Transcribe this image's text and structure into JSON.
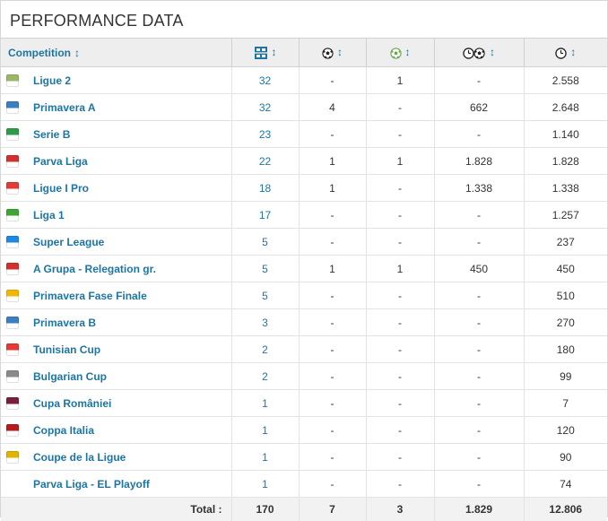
{
  "title": "PERFORMANCE DATA",
  "header": {
    "competition_label": "Competition",
    "columns": [
      {
        "icon": "appearances-icon",
        "sort": "↕"
      },
      {
        "icon": "goals-icon",
        "sort": "↕"
      },
      {
        "icon": "assists-icon",
        "sort": "↕"
      },
      {
        "icon": "minutes-per-goal-icon",
        "sort": "↕"
      },
      {
        "icon": "minutes-played-icon",
        "sort": "↕"
      }
    ],
    "sort_symbol": "↕"
  },
  "rows": [
    {
      "competition": "Ligue 2",
      "logo": "ligue-2-logo",
      "color": "#9bb86a",
      "apps": "32",
      "goals": "-",
      "assists": "1",
      "min_per_goal": "-",
      "minutes": "2.558"
    },
    {
      "competition": "Primavera A",
      "logo": "primavera-a-logo",
      "color": "#3a7fc4",
      "apps": "32",
      "goals": "4",
      "assists": "-",
      "min_per_goal": "662",
      "minutes": "2.648"
    },
    {
      "competition": "Serie B",
      "logo": "serie-b-logo",
      "color": "#2e9b4a",
      "apps": "23",
      "goals": "-",
      "assists": "-",
      "min_per_goal": "-",
      "minutes": "1.140"
    },
    {
      "competition": "Parva Liga",
      "logo": "parva-liga-logo",
      "color": "#d32f2f",
      "apps": "22",
      "goals": "1",
      "assists": "1",
      "min_per_goal": "1.828",
      "minutes": "1.828"
    },
    {
      "competition": "Ligue I Pro",
      "logo": "ligue-1-pro-logo",
      "color": "#e53935",
      "apps": "18",
      "goals": "1",
      "assists": "-",
      "min_per_goal": "1.338",
      "minutes": "1.338"
    },
    {
      "competition": "Liga 1",
      "logo": "liga-1-logo",
      "color": "#3fa535",
      "apps": "17",
      "goals": "-",
      "assists": "-",
      "min_per_goal": "-",
      "minutes": "1.257"
    },
    {
      "competition": "Super League",
      "logo": "super-league-logo",
      "color": "#1e88e5",
      "apps": "5",
      "goals": "-",
      "assists": "-",
      "min_per_goal": "-",
      "minutes": "237"
    },
    {
      "competition": "A Grupa - Relegation gr.",
      "logo": "a-grupa-logo",
      "color": "#d32f2f",
      "apps": "5",
      "goals": "1",
      "assists": "1",
      "min_per_goal": "450",
      "minutes": "450"
    },
    {
      "competition": "Primavera Fase Finale",
      "logo": "primavera-fase-finale-logo",
      "color": "#f2b705",
      "apps": "5",
      "goals": "-",
      "assists": "-",
      "min_per_goal": "-",
      "minutes": "510"
    },
    {
      "competition": "Primavera B",
      "logo": "primavera-b-logo",
      "color": "#3a7fc4",
      "apps": "3",
      "goals": "-",
      "assists": "-",
      "min_per_goal": "-",
      "minutes": "270"
    },
    {
      "competition": "Tunisian Cup",
      "logo": "tunisian-cup-logo",
      "color": "#e53935",
      "apps": "2",
      "goals": "-",
      "assists": "-",
      "min_per_goal": "-",
      "minutes": "180"
    },
    {
      "competition": "Bulgarian Cup",
      "logo": "bulgarian-cup-logo",
      "color": "#8a8a8a",
      "apps": "2",
      "goals": "-",
      "assists": "-",
      "min_per_goal": "-",
      "minutes": "99"
    },
    {
      "competition": "Cupa României",
      "logo": "cupa-romaniei-logo",
      "color": "#7b1e3a",
      "apps": "1",
      "goals": "-",
      "assists": "-",
      "min_per_goal": "-",
      "minutes": "7"
    },
    {
      "competition": "Coppa Italia",
      "logo": "coppa-italia-logo",
      "color": "#b71c1c",
      "apps": "1",
      "goals": "-",
      "assists": "-",
      "min_per_goal": "-",
      "minutes": "120"
    },
    {
      "competition": "Coupe de la Ligue",
      "logo": "coupe-de-la-ligue-logo",
      "color": "#e0b400",
      "apps": "1",
      "goals": "-",
      "assists": "-",
      "min_per_goal": "-",
      "minutes": "90"
    },
    {
      "competition": "Parva Liga - EL Playoff",
      "logo": "",
      "color": "",
      "apps": "1",
      "goals": "-",
      "assists": "-",
      "min_per_goal": "-",
      "minutes": "74"
    }
  ],
  "total": {
    "label": "Total :",
    "apps": "170",
    "goals": "7",
    "assists": "3",
    "min_per_goal": "1.829",
    "minutes": "12.806"
  },
  "colors": {
    "accent": "#1d75a3",
    "header_bg": "#eeeeee",
    "total_bg": "#f2f2f2"
  }
}
